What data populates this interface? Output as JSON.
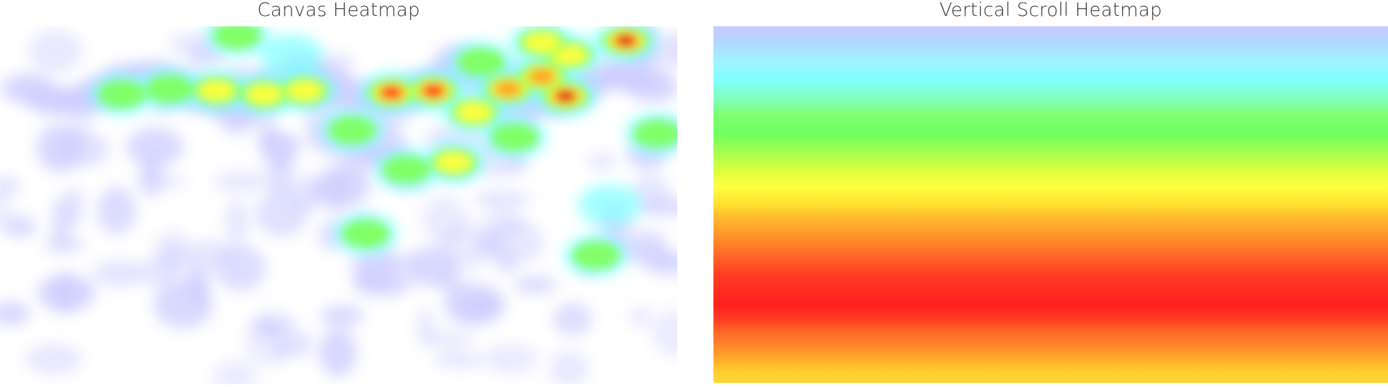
{
  "chart_data": [
    {
      "type": "heatmap",
      "title": "Canvas Heatmap",
      "colorscale": [
        "#ffffff",
        "#c6c6ff",
        "#7fffff",
        "#7fff5f",
        "#ffff3f",
        "#ff9f1f",
        "#ff1f1f",
        "#bf0000"
      ],
      "hotspots": [
        {
          "x": 0.924,
          "y": 0.04,
          "intensity": 1.0
        },
        {
          "x": 0.835,
          "y": 0.195,
          "intensity": 1.0
        },
        {
          "x": 0.578,
          "y": 0.185,
          "intensity": 0.85
        },
        {
          "x": 0.64,
          "y": 0.18,
          "intensity": 0.8
        },
        {
          "x": 0.75,
          "y": 0.175,
          "intensity": 0.7
        },
        {
          "x": 0.8,
          "y": 0.14,
          "intensity": 0.65
        },
        {
          "x": 0.84,
          "y": 0.08,
          "intensity": 0.55
        },
        {
          "x": 0.8,
          "y": 0.045,
          "intensity": 0.5
        },
        {
          "x": 0.45,
          "y": 0.18,
          "intensity": 0.55
        },
        {
          "x": 0.39,
          "y": 0.19,
          "intensity": 0.5
        },
        {
          "x": 0.32,
          "y": 0.18,
          "intensity": 0.45
        },
        {
          "x": 0.25,
          "y": 0.175,
          "intensity": 0.4
        },
        {
          "x": 0.18,
          "y": 0.19,
          "intensity": 0.35
        },
        {
          "x": 0.7,
          "y": 0.24,
          "intensity": 0.45
        },
        {
          "x": 0.76,
          "y": 0.31,
          "intensity": 0.4
        },
        {
          "x": 0.67,
          "y": 0.38,
          "intensity": 0.45
        },
        {
          "x": 0.6,
          "y": 0.4,
          "intensity": 0.35
        },
        {
          "x": 0.71,
          "y": 0.1,
          "intensity": 0.35
        },
        {
          "x": 0.35,
          "y": 0.025,
          "intensity": 0.3
        },
        {
          "x": 0.88,
          "y": 0.64,
          "intensity": 0.35
        },
        {
          "x": 0.54,
          "y": 0.58,
          "intensity": 0.3
        },
        {
          "x": 0.97,
          "y": 0.3,
          "intensity": 0.3
        },
        {
          "x": 0.52,
          "y": 0.29,
          "intensity": 0.3
        },
        {
          "x": 0.43,
          "y": 0.08,
          "intensity": 0.25
        },
        {
          "x": 0.9,
          "y": 0.5,
          "intensity": 0.25
        }
      ]
    },
    {
      "type": "heatmap",
      "title": "Vertical Scroll Heatmap",
      "orientation": "vertical",
      "colorscale": [
        "#c6c6ff",
        "#7fffff",
        "#7fff5f",
        "#ffff3f",
        "#ff9f1f",
        "#ff1f1f"
      ],
      "bands": [
        {
          "depth": 0.0,
          "color": "#c8c8ff"
        },
        {
          "depth": 0.05,
          "color": "#b0d8ff"
        },
        {
          "depth": 0.1,
          "color": "#a0f4ff"
        },
        {
          "depth": 0.15,
          "color": "#80ffff"
        },
        {
          "depth": 0.2,
          "color": "#80ffc0"
        },
        {
          "depth": 0.25,
          "color": "#80ff70"
        },
        {
          "depth": 0.3,
          "color": "#70ff60"
        },
        {
          "depth": 0.35,
          "color": "#a0ff50"
        },
        {
          "depth": 0.4,
          "color": "#d8ff40"
        },
        {
          "depth": 0.45,
          "color": "#ffff40"
        },
        {
          "depth": 0.5,
          "color": "#ffe030"
        },
        {
          "depth": 0.53,
          "color": "#ffc030"
        },
        {
          "depth": 0.58,
          "color": "#ff9a2a"
        },
        {
          "depth": 0.64,
          "color": "#ff6a28"
        },
        {
          "depth": 0.7,
          "color": "#ff3a22"
        },
        {
          "depth": 0.78,
          "color": "#ff2020"
        },
        {
          "depth": 0.82,
          "color": "#ff3a22"
        },
        {
          "depth": 0.86,
          "color": "#ff6a28"
        },
        {
          "depth": 0.9,
          "color": "#ff8a2a"
        },
        {
          "depth": 0.94,
          "color": "#ffb02c"
        },
        {
          "depth": 0.97,
          "color": "#ffd030"
        },
        {
          "depth": 1.0,
          "color": "#ffd530"
        }
      ]
    }
  ]
}
